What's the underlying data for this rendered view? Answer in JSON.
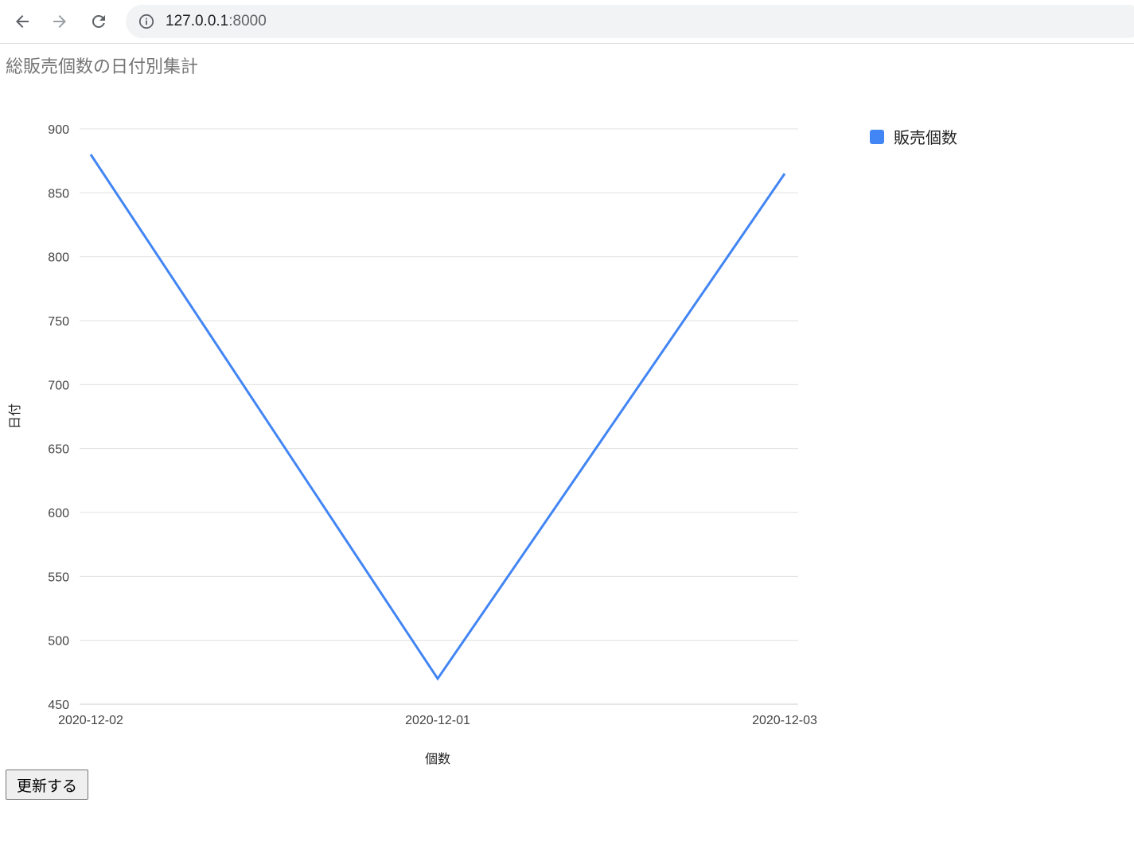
{
  "browser": {
    "url_host": "127.0.0.1",
    "url_port": ":8000",
    "icons": {
      "back": "arrow-left-icon",
      "forward": "arrow-right-icon",
      "reload": "reload-icon",
      "site_info": "info-icon"
    }
  },
  "page": {
    "title": "総販売個数の日付別集計",
    "update_button": "更新する"
  },
  "chart_data": {
    "type": "line",
    "categories": [
      "2020-12-02",
      "2020-12-01",
      "2020-12-03"
    ],
    "series": [
      {
        "name": "販売個数",
        "values": [
          880,
          470,
          865
        ],
        "color": "#4285f4"
      }
    ],
    "xlabel": "個数",
    "ylabel": "日付",
    "ylim": [
      450,
      900
    ],
    "yticks": [
      450,
      500,
      550,
      600,
      650,
      700,
      750,
      800,
      850,
      900
    ],
    "grid": true,
    "legend_position": "right"
  }
}
